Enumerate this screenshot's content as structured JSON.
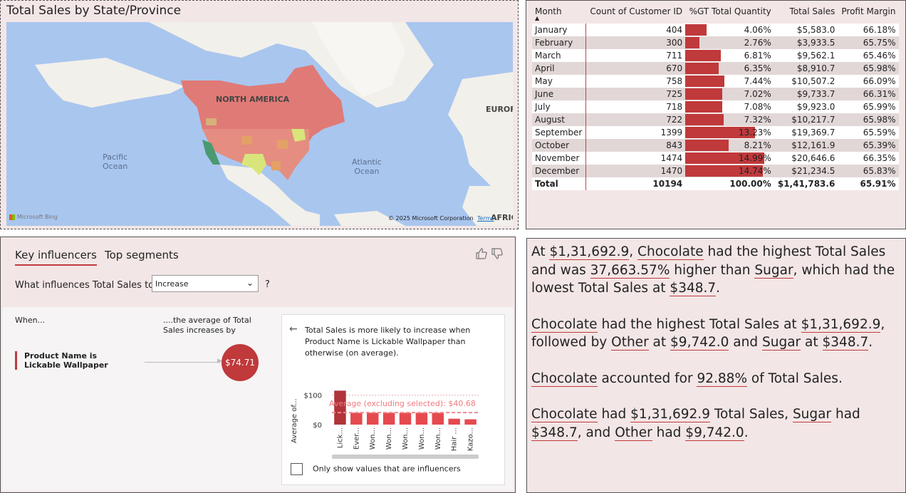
{
  "map": {
    "title": "Total Sales by State/Province",
    "labels": {
      "north_america": "NORTH AMERICA",
      "pacific": "Pacific\nOcean",
      "atlantic": "Atlantic\nOcean",
      "europe": "EUROF",
      "africa": "AFRIC"
    },
    "bing": "Microsoft Bing",
    "copyright": "© 2025 Microsoft Corporation",
    "terms": "Terms"
  },
  "table": {
    "headers": [
      "Month",
      "Count of Customer ID",
      "%GT Total Quantity",
      "Total Sales",
      "Profit Margin"
    ],
    "rows": [
      {
        "month": "January",
        "count": "404",
        "gt": "4.06%",
        "gt_val": 4.06,
        "sales": "$5,583.0",
        "margin": "66.18%"
      },
      {
        "month": "February",
        "count": "300",
        "gt": "2.76%",
        "gt_val": 2.76,
        "sales": "$3,933.5",
        "margin": "65.75%"
      },
      {
        "month": "March",
        "count": "711",
        "gt": "6.81%",
        "gt_val": 6.81,
        "sales": "$9,562.1",
        "margin": "65.46%"
      },
      {
        "month": "April",
        "count": "670",
        "gt": "6.35%",
        "gt_val": 6.35,
        "sales": "$8,910.7",
        "margin": "65.98%"
      },
      {
        "month": "May",
        "count": "758",
        "gt": "7.44%",
        "gt_val": 7.44,
        "sales": "$10,507.2",
        "margin": "66.09%"
      },
      {
        "month": "June",
        "count": "725",
        "gt": "7.02%",
        "gt_val": 7.02,
        "sales": "$9,733.7",
        "margin": "66.31%"
      },
      {
        "month": "July",
        "count": "718",
        "gt": "7.08%",
        "gt_val": 7.08,
        "sales": "$9,923.0",
        "margin": "65.99%"
      },
      {
        "month": "August",
        "count": "722",
        "gt": "7.32%",
        "gt_val": 7.32,
        "sales": "$10,217.7",
        "margin": "65.98%"
      },
      {
        "month": "September",
        "count": "1399",
        "gt": "13.23%",
        "gt_val": 13.23,
        "sales": "$19,369.7",
        "margin": "65.59%"
      },
      {
        "month": "October",
        "count": "843",
        "gt": "8.21%",
        "gt_val": 8.21,
        "sales": "$12,161.9",
        "margin": "65.39%"
      },
      {
        "month": "November",
        "count": "1474",
        "gt": "14.99%",
        "gt_val": 14.99,
        "sales": "$20,646.6",
        "margin": "66.35%"
      },
      {
        "month": "December",
        "count": "1470",
        "gt": "14.74%",
        "gt_val": 14.74,
        "sales": "$21,234.5",
        "margin": "65.83%"
      }
    ],
    "total": {
      "month": "Total",
      "count": "10194",
      "gt": "100.00%",
      "sales": "$1,41,783.6",
      "margin": "65.91%"
    }
  },
  "key_influencers": {
    "tabs": [
      "Key influencers",
      "Top segments"
    ],
    "question": "What influences Total Sales to",
    "dropdown_value": "Increase",
    "question_mark": "?",
    "when_label": "When...",
    "avg_label": "....the average of Total Sales increases by",
    "influencer": "Product Name is Lickable Wallpaper",
    "bubble_value": "$74.71",
    "detail_text": "Total Sales is more likely to increase when Product Name is Lickable Wallpaper than otherwise (on average).",
    "only_show": "Only show values that are influencers",
    "accent": "#c0393b"
  },
  "chart_data": {
    "type": "bar",
    "ylabel": "Average of...",
    "yticks": [
      "$100",
      "$0"
    ],
    "ylim": [
      0,
      140
    ],
    "categories": [
      "Lick...",
      "Ever...",
      "Won...",
      "Won...",
      "Won...",
      "Won...",
      "Won...",
      "Hair ...",
      "Kazo..."
    ],
    "values": [
      115,
      40,
      40,
      40,
      40,
      40,
      40,
      20,
      18
    ],
    "reference_line": {
      "label": "Average (excluding selected): $40.68",
      "value": 40.68
    }
  },
  "narrative": {
    "p1": [
      "At ",
      {
        "u": "$1,31,692.9"
      },
      ", ",
      {
        "u": "Chocolate"
      },
      " had the highest Total Sales and was ",
      {
        "u": "37,663.57%"
      },
      " higher than ",
      {
        "u": "Sugar"
      },
      ", which had the lowest Total Sales at ",
      {
        "u": "$348.7"
      },
      "."
    ],
    "p2": [
      {
        "u": "Chocolate"
      },
      " had the highest Total Sales at ",
      {
        "u": "$1,31,692.9"
      },
      ", followed by ",
      {
        "u": "Other"
      },
      " at ",
      {
        "u": "$9,742.0"
      },
      " and ",
      {
        "u": "Sugar"
      },
      " at ",
      {
        "u": "$348.7"
      },
      "."
    ],
    "p3": [
      {
        "u": "Chocolate"
      },
      " accounted for ",
      {
        "u": "92.88%"
      },
      " of Total Sales."
    ],
    "p4": [
      {
        "u": "Chocolate"
      },
      " had ",
      {
        "u": "$1,31,692.9"
      },
      " Total Sales, ",
      {
        "u": "Sugar"
      },
      " had ",
      {
        "u": "$348.7"
      },
      ", and ",
      {
        "u": "Other"
      },
      " had ",
      {
        "u": "$9,742.0"
      },
      "."
    ]
  }
}
